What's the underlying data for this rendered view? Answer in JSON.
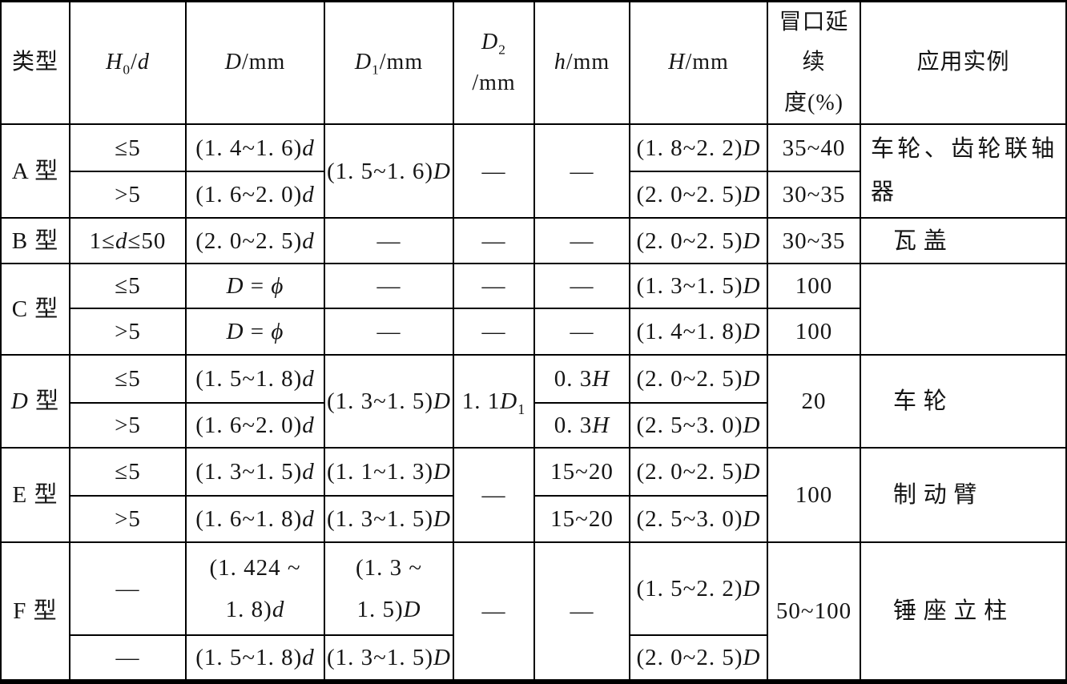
{
  "colors": {
    "border": "#000000",
    "background": "#ffffff",
    "text": "#151515"
  },
  "table": {
    "columns": [
      {
        "key": "type",
        "label": "类型"
      },
      {
        "key": "h0_over_d",
        "label": "H₀/d"
      },
      {
        "key": "D",
        "label": "D/mm"
      },
      {
        "key": "D1",
        "label": "D₁/mm"
      },
      {
        "key": "D2",
        "label": [
          "D₂",
          "/mm"
        ]
      },
      {
        "key": "h",
        "label": "h/mm"
      },
      {
        "key": "H",
        "label": "H/mm"
      },
      {
        "key": "riser_continuation",
        "label": [
          "冒口延续",
          "度(%)"
        ]
      },
      {
        "key": "application",
        "label": "应用实例"
      }
    ],
    "groups": {
      "A": {
        "type": "A 型",
        "rows": [
          {
            "h0d": "≤5",
            "D": "(1. 4~1. 6)d",
            "H": "(1. 8~2. 2)D",
            "riser": "35~40"
          },
          {
            "h0d": ">5",
            "D": "(1. 6~2. 0)d",
            "H": "(2. 0~2. 5)D",
            "riser": "30~35"
          }
        ],
        "D1": "(1. 5~1. 6)D",
        "D2": "—",
        "h": "—",
        "application": "车轮、齿轮联轴器"
      },
      "B": {
        "type": "B 型",
        "rows": [
          {
            "h0d": "1≤d≤50",
            "D": "(2. 0~2. 5)d",
            "D1": "—",
            "D2": "—",
            "h": "—",
            "H": "(2. 0~2. 5)D",
            "riser": "30~35"
          }
        ],
        "application": "瓦盖"
      },
      "C": {
        "type": "C 型",
        "rows": [
          {
            "h0d": "≤5",
            "D": "D = ϕ",
            "D1": "—",
            "D2": "—",
            "h": "—",
            "H": "(1. 3~1. 5)D",
            "riser": "100"
          },
          {
            "h0d": ">5",
            "D": "D = ϕ",
            "D1": "—",
            "D2": "—",
            "h": "—",
            "H": "(1. 4~1. 8)D",
            "riser": "100"
          }
        ],
        "application": ""
      },
      "D": {
        "type": "D 型",
        "rows": [
          {
            "h0d": "≤5",
            "D": "(1. 5~1. 8)d",
            "h": "0. 3H",
            "H": "(2. 0~2. 5)D"
          },
          {
            "h0d": ">5",
            "D": "(1. 6~2. 0)d",
            "h": "0. 3H",
            "H": "(2. 5~3. 0)D"
          }
        ],
        "D1": "(1. 3~1. 5)D",
        "D2": "1. 1D₁",
        "riser": "20",
        "application": "车轮"
      },
      "E": {
        "type": "E 型",
        "rows": [
          {
            "h0d": "≤5",
            "D": "(1. 3~1. 5)d",
            "D1": "(1. 1~1. 3)D",
            "h": "15~20",
            "H": "(2. 0~2. 5)D"
          },
          {
            "h0d": ">5",
            "D": "(1. 6~1. 8)d",
            "D1": "(1. 3~1. 5)D",
            "h": "15~20",
            "H": "(2. 5~3. 0)D"
          }
        ],
        "D2": "—",
        "riser": "100",
        "application": "制动臂"
      },
      "F": {
        "type": "F 型",
        "rows": [
          {
            "h0d": "—",
            "D": [
              "(1. 424 ~",
              "1. 8)d"
            ],
            "D1": [
              "(1. 3 ~",
              "1. 5)D"
            ],
            "H": "(1. 5~2. 2)D"
          },
          {
            "h0d": "—",
            "D": "(1. 5~1. 8)d",
            "D1": "(1. 3~1. 5)D",
            "H": "(2. 0~2. 5)D"
          }
        ],
        "D2": "—",
        "h": "—",
        "riser": "50~100",
        "application": "锤座立柱"
      }
    }
  }
}
